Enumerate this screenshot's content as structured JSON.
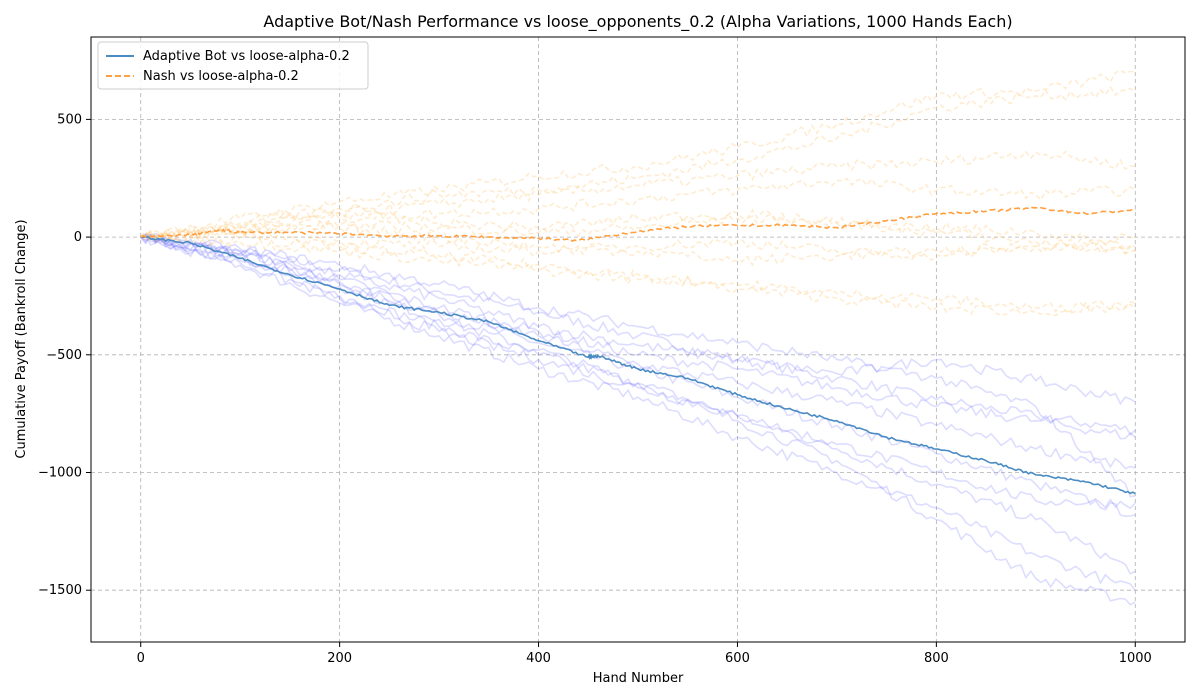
{
  "chart_data": {
    "type": "line",
    "title": "Adaptive Bot/Nash Performance vs  loose_opponents_0.2 (Alpha Variations, 1000 Hands Each)",
    "xlabel": "Hand Number",
    "ylabel": "Cumulative Payoff (Bankroll Change)",
    "xlim": [
      -50,
      1050
    ],
    "ylim": [
      -1720,
      850
    ],
    "xticks": [
      0,
      200,
      400,
      600,
      800,
      1000
    ],
    "yticks": [
      -1500,
      -1000,
      -500,
      0,
      500
    ],
    "grid": true,
    "legend_position": "top-left",
    "colors": {
      "adaptive": "#4a8bc4",
      "nash": "#ff9f40",
      "adaptive_faint": "#6666ff",
      "nash_faint": "#ffc878",
      "grid": "#b0b0b0"
    },
    "series": [
      {
        "name": "Adaptive Bot vs loose-alpha-0.2",
        "style": "solid",
        "color": "#4a8bc4",
        "x": [
          0,
          50,
          100,
          150,
          200,
          250,
          300,
          350,
          400,
          450,
          460,
          500,
          550,
          600,
          650,
          700,
          750,
          800,
          850,
          900,
          950,
          1000
        ],
        "y": [
          0,
          -25,
          -90,
          -160,
          -220,
          -290,
          -320,
          -360,
          -440,
          -510,
          -505,
          -560,
          -600,
          -670,
          -730,
          -780,
          -850,
          -900,
          -950,
          -1010,
          -1040,
          -1090
        ]
      },
      {
        "name": "Nash vs loose-alpha-0.2",
        "style": "dashed",
        "color": "#ff9f40",
        "x": [
          0,
          50,
          80,
          100,
          150,
          200,
          250,
          300,
          350,
          400,
          440,
          500,
          550,
          600,
          650,
          700,
          750,
          800,
          850,
          900,
          950,
          1000
        ],
        "y": [
          0,
          10,
          30,
          20,
          20,
          15,
          5,
          5,
          0,
          -5,
          -15,
          25,
          45,
          50,
          50,
          40,
          70,
          100,
          110,
          125,
          100,
          115
        ]
      }
    ],
    "background_runs": [
      {
        "group": "adaptive",
        "x": [
          0,
          100,
          200,
          300,
          400,
          500,
          600,
          700,
          800,
          900,
          1000
        ],
        "y": [
          0,
          -60,
          -140,
          -230,
          -320,
          -420,
          -520,
          -600,
          -690,
          -760,
          -820
        ]
      },
      {
        "group": "adaptive",
        "x": [
          0,
          100,
          200,
          300,
          400,
          500,
          600,
          700,
          800,
          900,
          1000
        ],
        "y": [
          0,
          -80,
          -200,
          -330,
          -450,
          -560,
          -680,
          -800,
          -920,
          -1050,
          -1180
        ]
      },
      {
        "group": "adaptive",
        "x": [
          0,
          100,
          200,
          300,
          400,
          500,
          600,
          700,
          800,
          900,
          1000
        ],
        "y": [
          0,
          -100,
          -250,
          -380,
          -500,
          -620,
          -760,
          -900,
          -1050,
          -1200,
          -1420
        ]
      },
      {
        "group": "adaptive",
        "x": [
          0,
          100,
          200,
          300,
          400,
          500,
          600,
          700,
          800,
          900,
          1000
        ],
        "y": [
          0,
          -120,
          -280,
          -420,
          -560,
          -680,
          -850,
          -1000,
          -1150,
          -1350,
          -1500
        ]
      },
      {
        "group": "adaptive",
        "x": [
          0,
          100,
          200,
          300,
          400,
          500,
          600,
          700,
          800,
          900,
          1000
        ],
        "y": [
          0,
          -90,
          -210,
          -350,
          -480,
          -620,
          -780,
          -950,
          -1200,
          -1450,
          -1550
        ]
      },
      {
        "group": "adaptive",
        "x": [
          0,
          100,
          200,
          300,
          400,
          500,
          600,
          700,
          800,
          900,
          1000
        ],
        "y": [
          0,
          -70,
          -180,
          -300,
          -400,
          -500,
          -560,
          -640,
          -720,
          -780,
          -850
        ]
      },
      {
        "group": "adaptive",
        "x": [
          0,
          100,
          200,
          300,
          400,
          500,
          600,
          700,
          800,
          900,
          1000
        ],
        "y": [
          0,
          -60,
          -160,
          -260,
          -380,
          -460,
          -520,
          -580,
          -520,
          -610,
          -700
        ]
      },
      {
        "group": "adaptive",
        "x": [
          0,
          100,
          200,
          300,
          400,
          500,
          600,
          700,
          800,
          900,
          1000
        ],
        "y": [
          0,
          -110,
          -260,
          -400,
          -520,
          -640,
          -760,
          -880,
          -1000,
          -1120,
          -1130
        ]
      },
      {
        "group": "adaptive",
        "x": [
          0,
          100,
          200,
          300,
          400,
          500,
          600,
          700,
          800,
          900,
          1000
        ],
        "y": [
          0,
          -70,
          -190,
          -320,
          -420,
          -540,
          -620,
          -700,
          -800,
          -900,
          -980
        ]
      },
      {
        "group": "adaptive",
        "x": [
          0,
          100,
          200,
          300,
          400,
          500,
          600,
          700,
          800,
          900,
          1000
        ],
        "y": [
          0,
          -50,
          -120,
          -200,
          -300,
          -380,
          -450,
          -520,
          -600,
          -720,
          -1100
        ]
      },
      {
        "group": "nash",
        "x": [
          0,
          100,
          200,
          300,
          400,
          500,
          600,
          700,
          800,
          900,
          1000
        ],
        "y": [
          0,
          80,
          150,
          200,
          260,
          300,
          380,
          480,
          600,
          620,
          700
        ]
      },
      {
        "group": "nash",
        "x": [
          0,
          100,
          200,
          300,
          400,
          500,
          600,
          700,
          800,
          900,
          1000
        ],
        "y": [
          0,
          60,
          120,
          180,
          200,
          250,
          330,
          420,
          550,
          600,
          620
        ]
      },
      {
        "group": "nash",
        "x": [
          0,
          100,
          200,
          300,
          400,
          500,
          600,
          700,
          800,
          900,
          1000
        ],
        "y": [
          0,
          50,
          100,
          140,
          180,
          220,
          260,
          300,
          320,
          360,
          300
        ]
      },
      {
        "group": "nash",
        "x": [
          0,
          100,
          200,
          300,
          400,
          500,
          600,
          700,
          800,
          900,
          1000
        ],
        "y": [
          0,
          40,
          80,
          100,
          120,
          160,
          200,
          240,
          200,
          180,
          200
        ]
      },
      {
        "group": "nash",
        "x": [
          0,
          100,
          200,
          300,
          400,
          500,
          600,
          700,
          800,
          900,
          1000
        ],
        "y": [
          0,
          30,
          50,
          40,
          20,
          40,
          80,
          60,
          40,
          20,
          -40
        ]
      },
      {
        "group": "nash",
        "x": [
          0,
          100,
          200,
          300,
          400,
          500,
          600,
          700,
          800,
          900,
          1000
        ],
        "y": [
          0,
          20,
          -20,
          -40,
          -60,
          -40,
          -20,
          -60,
          -80,
          -40,
          -60
        ]
      },
      {
        "group": "nash",
        "x": [
          0,
          100,
          200,
          300,
          400,
          500,
          600,
          700,
          800,
          900,
          1000
        ],
        "y": [
          0,
          -20,
          -60,
          -100,
          -140,
          -180,
          -200,
          -240,
          -260,
          -300,
          -300
        ]
      },
      {
        "group": "nash",
        "x": [
          0,
          100,
          200,
          300,
          400,
          500,
          600,
          700,
          800,
          900,
          1000
        ],
        "y": [
          0,
          -10,
          -40,
          -80,
          -120,
          -160,
          -220,
          -260,
          -300,
          -320,
          -280
        ]
      },
      {
        "group": "nash",
        "x": [
          0,
          100,
          200,
          300,
          400,
          500,
          600,
          700,
          800,
          900,
          1000
        ],
        "y": [
          0,
          40,
          100,
          60,
          40,
          80,
          100,
          60,
          20,
          -20,
          -60
        ]
      },
      {
        "group": "nash",
        "x": [
          0,
          100,
          200,
          300,
          400,
          500,
          600,
          700,
          800,
          900,
          1000
        ],
        "y": [
          0,
          20,
          40,
          0,
          -40,
          -60,
          -100,
          -80,
          -60,
          -40,
          0
        ]
      }
    ]
  }
}
